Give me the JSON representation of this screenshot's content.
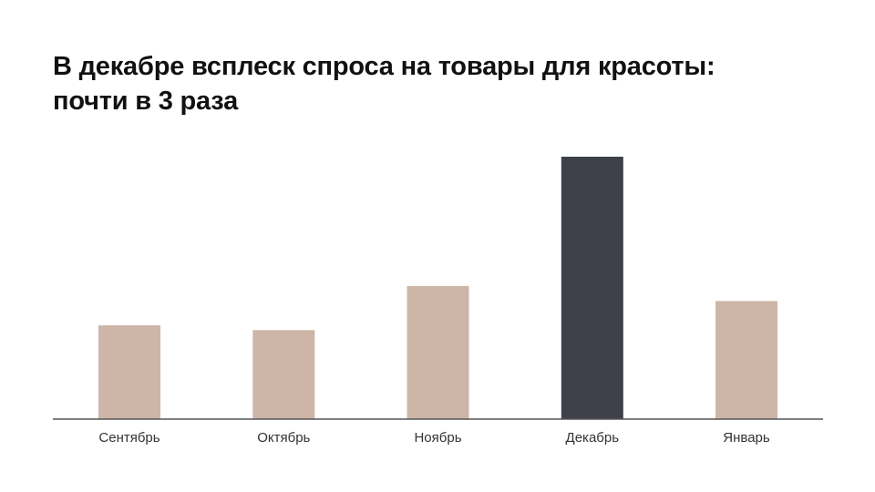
{
  "title_lines": [
    "В декабре всплеск спроса на товары для красоты:",
    "почти в 3 раза"
  ],
  "colors": {
    "bar_default": "#cdb6a8",
    "bar_highlight": "#3e414a",
    "axis": "#555555",
    "title": "#111111",
    "tick_label": "#333333"
  },
  "chart_data": {
    "type": "bar",
    "categories": [
      "Сентябрь",
      "Октябрь",
      "Ноябрь",
      "Декабрь",
      "Январь"
    ],
    "values": [
      1.0,
      0.95,
      1.42,
      2.8,
      1.26
    ],
    "highlight_index": 3,
    "title": "В декабре всплеск спроса на товары для красоты: почти в 3 раза",
    "xlabel": "",
    "ylabel": "",
    "ylim": [
      0,
      2.8
    ],
    "grid": false,
    "legend": "none"
  }
}
